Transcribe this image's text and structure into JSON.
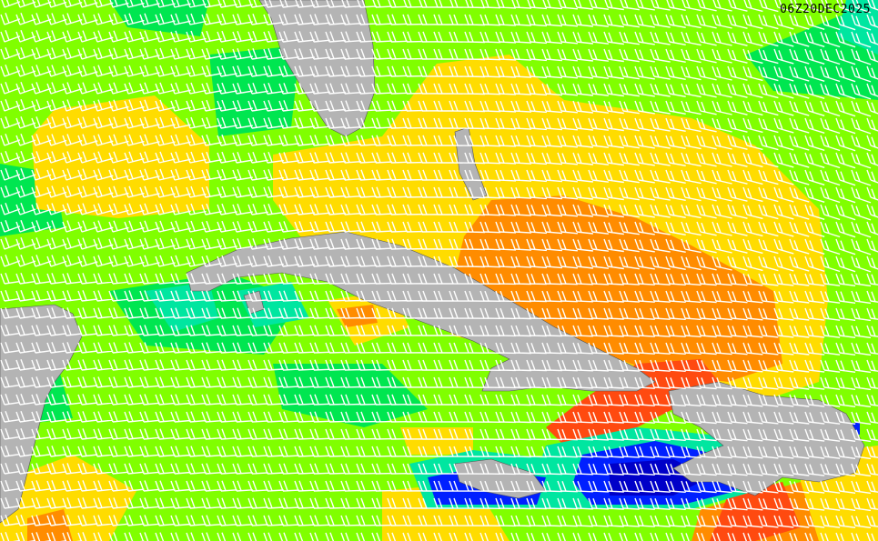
{
  "map": {
    "timestamp": "06Z20DEC2025",
    "colors": {
      "lime": "#80ff00",
      "green": "#00e650",
      "teal": "#00e6a0",
      "yellow": "#ffdc00",
      "orange": "#ff8c00",
      "red": "#ff4a10",
      "blue": "#0020ff",
      "darkblue": "#0000c8",
      "land": "#b4b4b4",
      "barb": "#ffffff"
    }
  }
}
